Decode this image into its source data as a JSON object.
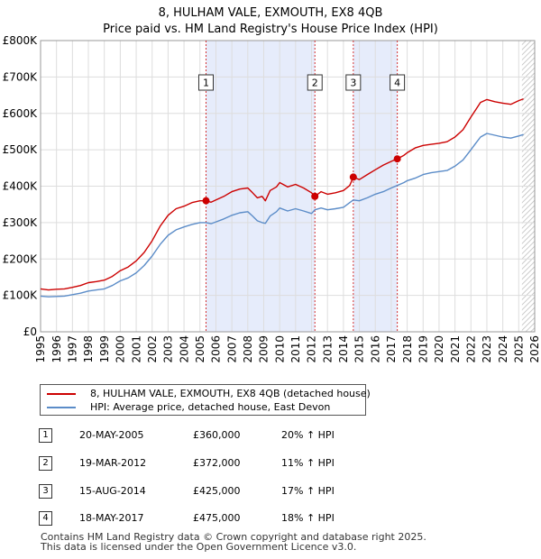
{
  "colors": {
    "property": "#cc0000",
    "hpi": "#5b8cc8",
    "shade": "#e6ecfb",
    "grid": "#dddddd",
    "vline": "#cc0000"
  },
  "chart_data": {
    "type": "line",
    "title": "8, HULHAM VALE, EXMOUTH, EX8 4QB",
    "subtitle": "Price paid vs. HM Land Registry's House Price Index (HPI)",
    "xlim": [
      1995,
      2026
    ],
    "ylim": [
      0,
      800000
    ],
    "x_ticks": [
      1995,
      1996,
      1997,
      1998,
      1999,
      2000,
      2001,
      2002,
      2003,
      2004,
      2005,
      2006,
      2007,
      2008,
      2009,
      2010,
      2011,
      2012,
      2013,
      2014,
      2015,
      2016,
      2017,
      2018,
      2019,
      2020,
      2021,
      2022,
      2023,
      2024,
      2025,
      2026
    ],
    "y_ticks": [
      {
        "value": 0,
        "label": "£0"
      },
      {
        "value": 100000,
        "label": "£100K"
      },
      {
        "value": 200000,
        "label": "£200K"
      },
      {
        "value": 300000,
        "label": "£300K"
      },
      {
        "value": 400000,
        "label": "£400K"
      },
      {
        "value": 500000,
        "label": "£500K"
      },
      {
        "value": 600000,
        "label": "£600K"
      },
      {
        "value": 700000,
        "label": "£700K"
      },
      {
        "value": 800000,
        "label": "£800K"
      }
    ],
    "shaded_ranges": [
      [
        2005.38,
        2012.21
      ],
      [
        2014.62,
        2017.38
      ]
    ],
    "hatched_from": 2025.2,
    "series": [
      {
        "name": "8, HULHAM VALE, EXMOUTH, EX8 4QB (detached house)",
        "x": [
          1995,
          1995.5,
          1996,
          1996.5,
          1997,
          1997.5,
          1998,
          1998.5,
          1999,
          1999.5,
          2000,
          2000.5,
          2001,
          2001.5,
          2002,
          2002.5,
          2003,
          2003.5,
          2004,
          2004.5,
          2005,
          2005.38,
          2005.7,
          2006,
          2006.5,
          2007,
          2007.5,
          2008,
          2008.3,
          2008.6,
          2008.9,
          2009.1,
          2009.4,
          2009.8,
          2010,
          2010.5,
          2011,
          2011.5,
          2012,
          2012.21,
          2012.6,
          2013,
          2013.5,
          2014,
          2014.4,
          2014.62,
          2015,
          2015.5,
          2016,
          2016.5,
          2017,
          2017.38,
          2017.8,
          2018,
          2018.5,
          2019,
          2019.5,
          2020,
          2020.5,
          2021,
          2021.5,
          2022,
          2022.3,
          2022.6,
          2023,
          2023.5,
          2024,
          2024.5,
          2025,
          2025.3
        ],
        "values": [
          118000,
          115000,
          117000,
          118000,
          122000,
          127000,
          135000,
          138000,
          142000,
          152000,
          168000,
          178000,
          195000,
          218000,
          250000,
          290000,
          320000,
          338000,
          345000,
          355000,
          360000,
          360000,
          356000,
          362000,
          372000,
          385000,
          392000,
          395000,
          382000,
          368000,
          372000,
          360000,
          388000,
          398000,
          410000,
          398000,
          405000,
          395000,
          382000,
          372000,
          385000,
          378000,
          382000,
          388000,
          402000,
          425000,
          418000,
          432000,
          445000,
          458000,
          468000,
          475000,
          485000,
          492000,
          505000,
          512000,
          515000,
          518000,
          522000,
          535000,
          555000,
          590000,
          610000,
          630000,
          638000,
          632000,
          628000,
          625000,
          635000,
          640000
        ]
      },
      {
        "name": "HPI: Average price, detached house, East Devon",
        "x": [
          1995,
          1995.5,
          1996,
          1996.5,
          1997,
          1997.5,
          1998,
          1998.5,
          1999,
          1999.5,
          2000,
          2000.5,
          2001,
          2001.5,
          2002,
          2002.5,
          2003,
          2003.5,
          2004,
          2004.5,
          2005,
          2005.38,
          2005.7,
          2006,
          2006.5,
          2007,
          2007.5,
          2008,
          2008.3,
          2008.6,
          2008.9,
          2009.1,
          2009.4,
          2009.8,
          2010,
          2010.5,
          2011,
          2011.5,
          2012,
          2012.21,
          2012.6,
          2013,
          2013.5,
          2014,
          2014.4,
          2014.62,
          2015,
          2015.5,
          2016,
          2016.5,
          2017,
          2017.38,
          2017.8,
          2018,
          2018.5,
          2019,
          2019.5,
          2020,
          2020.5,
          2021,
          2021.5,
          2022,
          2022.3,
          2022.6,
          2023,
          2023.5,
          2024,
          2024.5,
          2025,
          2025.3
        ],
        "values": [
          98000,
          96000,
          97000,
          98000,
          102000,
          106000,
          112000,
          115000,
          118000,
          127000,
          140000,
          148000,
          162000,
          182000,
          208000,
          240000,
          265000,
          280000,
          288000,
          295000,
          300000,
          300000,
          297000,
          302000,
          310000,
          320000,
          327000,
          330000,
          318000,
          305000,
          300000,
          298000,
          318000,
          330000,
          340000,
          332000,
          338000,
          332000,
          325000,
          335000,
          340000,
          335000,
          338000,
          342000,
          355000,
          362000,
          360000,
          368000,
          378000,
          385000,
          395000,
          402000,
          410000,
          415000,
          422000,
          432000,
          437000,
          440000,
          443000,
          455000,
          472000,
          500000,
          518000,
          535000,
          545000,
          540000,
          535000,
          532000,
          538000,
          542000
        ]
      }
    ],
    "sales": [
      {
        "num": "1",
        "x": 2005.38,
        "value": 360000
      },
      {
        "num": "2",
        "x": 2012.21,
        "value": 372000
      },
      {
        "num": "3",
        "x": 2014.62,
        "value": 425000
      },
      {
        "num": "4",
        "x": 2017.38,
        "value": 475000
      }
    ]
  },
  "legend": {
    "property_label": "8, HULHAM VALE, EXMOUTH, EX8 4QB (detached house)",
    "hpi_label": "HPI: Average price, detached house, East Devon"
  },
  "sales_table": [
    {
      "num": "1",
      "date": "20-MAY-2005",
      "price": "£360,000",
      "hpi": "20% ↑ HPI"
    },
    {
      "num": "2",
      "date": "19-MAR-2012",
      "price": "£372,000",
      "hpi": "11% ↑ HPI"
    },
    {
      "num": "3",
      "date": "15-AUG-2014",
      "price": "£425,000",
      "hpi": "17% ↑ HPI"
    },
    {
      "num": "4",
      "date": "18-MAY-2017",
      "price": "£475,000",
      "hpi": "18% ↑ HPI"
    }
  ],
  "footer": {
    "line1": "Contains HM Land Registry data © Crown copyright and database right 2025.",
    "line2": "This data is licensed under the Open Government Licence v3.0."
  }
}
